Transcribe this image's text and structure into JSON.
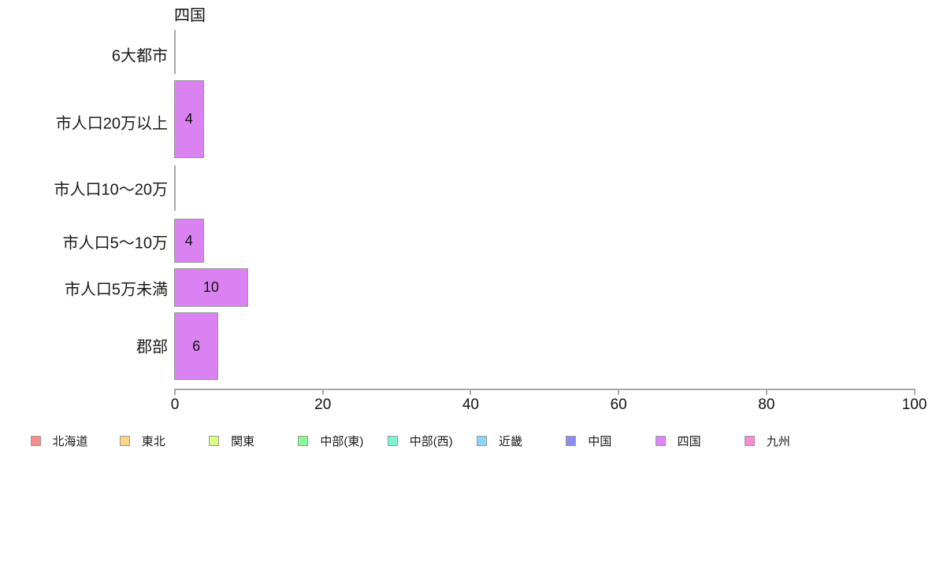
{
  "chart_data": {
    "type": "bar",
    "orientation": "horizontal",
    "title": "四国",
    "categories": [
      "6大都市",
      "市人口20万以上",
      "市人口10〜20万",
      "市人口5〜10万",
      "市人口5万未満",
      "郡部"
    ],
    "values": [
      0,
      4,
      0,
      4,
      10,
      6
    ],
    "bar_labels": [
      "",
      "4",
      "",
      "4",
      "10",
      "6"
    ],
    "xlabel": "",
    "ylabel": "",
    "xlim": [
      0,
      100
    ],
    "xticks": [
      0,
      20,
      40,
      60,
      80,
      100
    ],
    "grid": false,
    "legend_position": "bottom",
    "bar_fill": "#db82f2",
    "bar_border": "#979797",
    "axis_color": "#a9a9a9",
    "text_color": "#1a1a1a",
    "legend": [
      {
        "label": "北海道",
        "color": "#fb8a8a"
      },
      {
        "label": "東北",
        "color": "#fbd385"
      },
      {
        "label": "関東",
        "color": "#ddfb85"
      },
      {
        "label": "中部(東)",
        "color": "#85fb93"
      },
      {
        "label": "中部(西)",
        "color": "#7af5cd"
      },
      {
        "label": "近畿",
        "color": "#8ad6fa"
      },
      {
        "label": "中国",
        "color": "#8c8cf0"
      },
      {
        "label": "四国",
        "color": "#dc86f5"
      },
      {
        "label": "九州",
        "color": "#fa8ad1"
      }
    ]
  }
}
